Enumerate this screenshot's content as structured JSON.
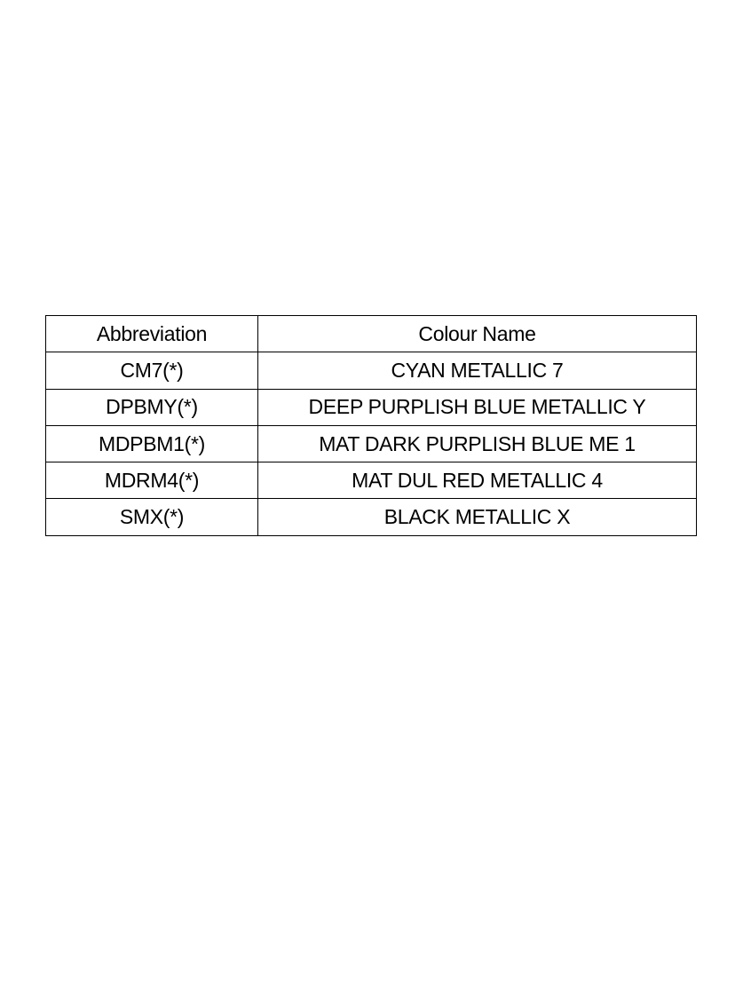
{
  "table": {
    "headers": [
      "Abbreviation",
      "Colour Name"
    ],
    "rows": [
      [
        "CM7(*)",
        "CYAN METALLIC 7"
      ],
      [
        "DPBMY(*)",
        "DEEP PURPLISH BLUE METALLIC Y"
      ],
      [
        "MDPBM1(*)",
        "MAT DARK PURPLISH BLUE ME 1"
      ],
      [
        "MDRM4(*)",
        "MAT DUL RED METALLIC 4"
      ],
      [
        "SMX(*)",
        "BLACK METALLIC X"
      ]
    ]
  }
}
